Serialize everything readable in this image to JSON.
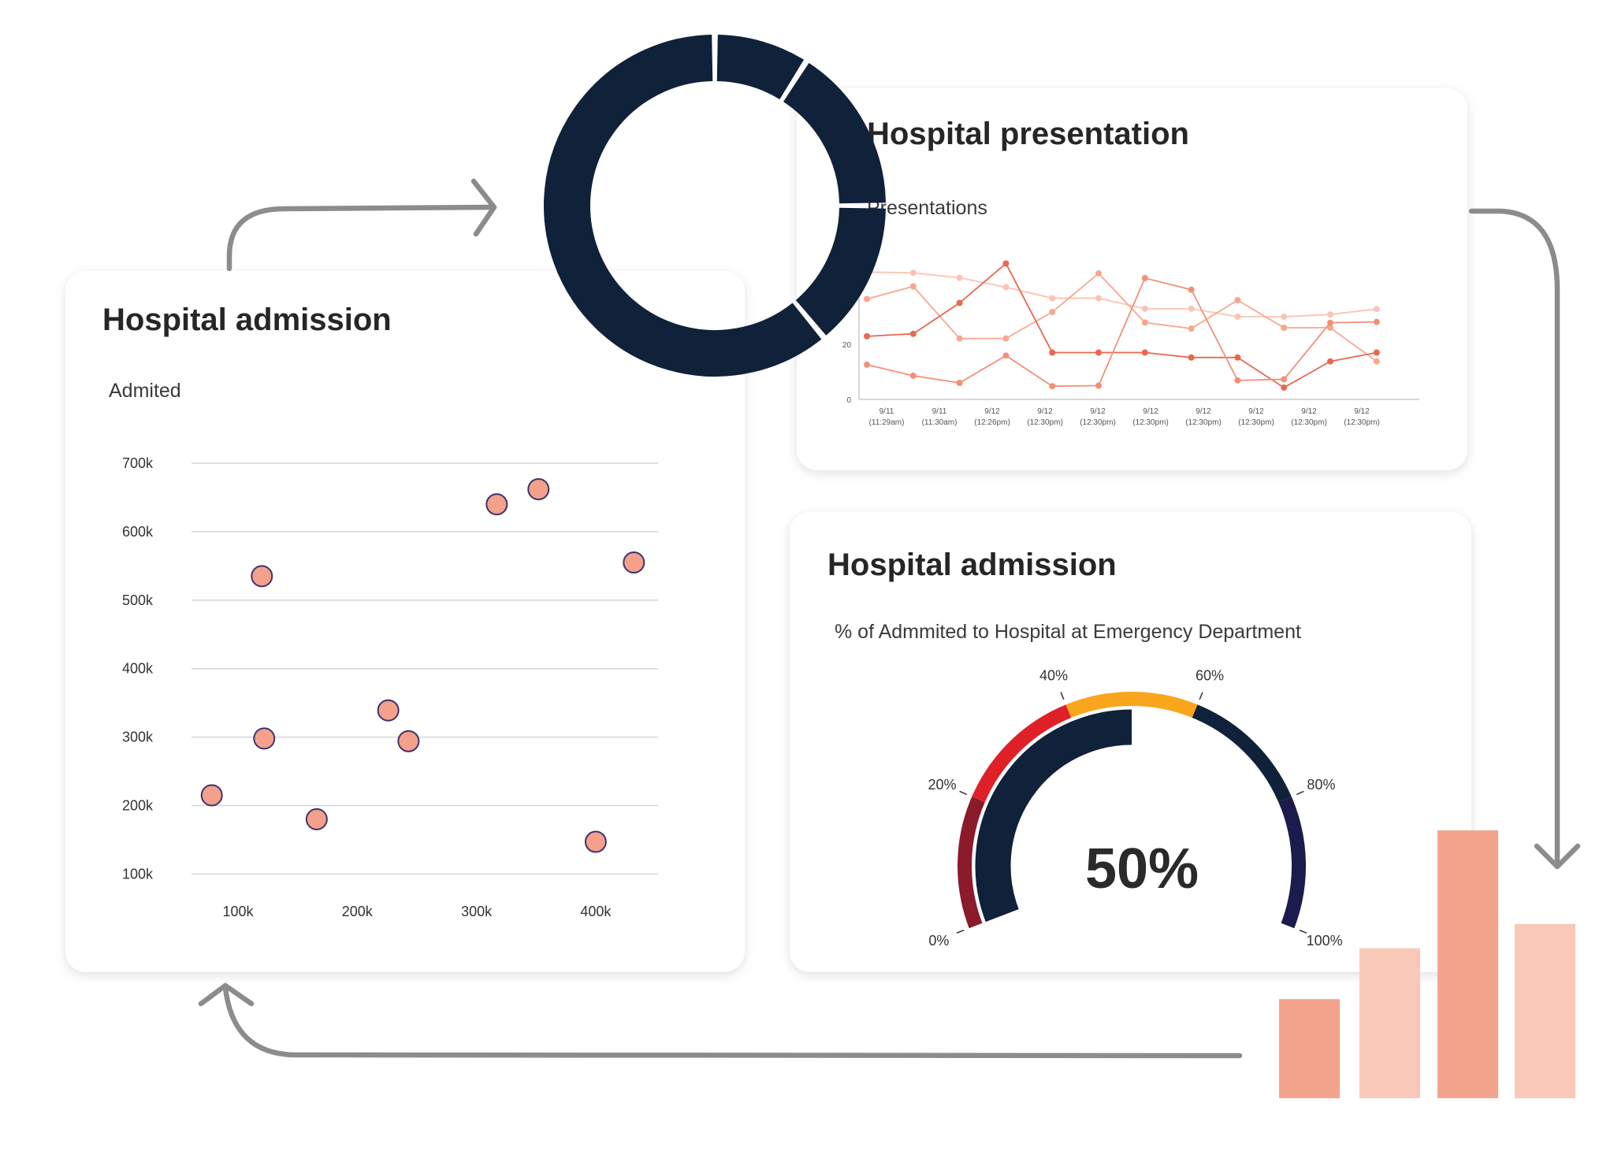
{
  "admission_card": {
    "title": "Hospital admission",
    "subtitle": "Admited"
  },
  "presentation_card": {
    "title": "Hospital presentation",
    "subtitle": "Presentations"
  },
  "gauge_card": {
    "title": "Hospital admission",
    "subtitle": "% of Admmited to Hospital at Emergency Department"
  },
  "colors": {
    "arrow": "#8c8c8c",
    "navy": "#10213a",
    "marker_fill": "#f4a08a",
    "marker_stroke": "#3b3470"
  },
  "chart_data": [
    {
      "type": "scatter",
      "xticks": [
        "100k",
        "200k",
        "300k",
        "400k"
      ],
      "yticks": [
        "100k",
        "200k",
        "300k",
        "400k",
        "500k",
        "600k",
        "700k"
      ],
      "grid": true,
      "points": [
        {
          "x": 120000,
          "y": 535000
        },
        {
          "x": 317000,
          "y": 640000
        },
        {
          "x": 352000,
          "y": 662000
        },
        {
          "x": 432000,
          "y": 555000
        },
        {
          "x": 122000,
          "y": 298000
        },
        {
          "x": 226000,
          "y": 339000
        },
        {
          "x": 243000,
          "y": 294000
        },
        {
          "x": 78000,
          "y": 215000
        },
        {
          "x": 166000,
          "y": 180000
        },
        {
          "x": 400000,
          "y": 147000
        }
      ]
    },
    {
      "type": "line",
      "yticks": [
        "0",
        "20"
      ],
      "xticks": [
        "9/11|(11:29am)",
        "9/11|(11:30am)",
        "9/12|(12:26pm)",
        "9/12|(12:30pm)",
        "9/12|(12:30pm)",
        "9/12|(12:30pm)",
        "9/12|(12:30pm)",
        "9/12|(12:30pm)",
        "9/12|(12:30pm)",
        "9/12|(12:30pm)"
      ],
      "series": [
        {
          "color": "#fbc4b2",
          "values": [
            46.2,
            45.9,
            44.1,
            40.7,
            36.7,
            36.7,
            32.9,
            32.9,
            30,
            30,
            30.8,
            32.8
          ]
        },
        {
          "color": "#f8a78e",
          "values": [
            36.4,
            41,
            22.1,
            22.1,
            31.7,
            45.7,
            27.9,
            25.7,
            36,
            26,
            26,
            13.8
          ]
        },
        {
          "color": "#e8684e",
          "values": [
            22.9,
            23.8,
            35,
            49.3,
            17,
            17,
            17,
            15.2,
            15.2,
            4.3,
            13.8,
            17
          ]
        },
        {
          "color": "#f29077",
          "values": [
            12.6,
            8.6,
            6,
            15.9,
            4.8,
            5,
            44,
            39.8,
            6.9,
            7.3,
            27.8,
            28.1
          ]
        }
      ]
    },
    {
      "type": "gauge",
      "value": 50,
      "value_label": "50%",
      "ticks": [
        "0%",
        "20%",
        "40%",
        "60%",
        "80%",
        "100%"
      ],
      "bands": [
        {
          "from": 0,
          "to": 20,
          "color": "#8b1a2b"
        },
        {
          "from": 20,
          "to": 40,
          "color": "#e02027"
        },
        {
          "from": 40,
          "to": 60,
          "color": "#f9a61c"
        },
        {
          "from": 60,
          "to": 80,
          "color": "#10213a"
        },
        {
          "from": 80,
          "to": 100,
          "color": "#1c1b4d"
        }
      ]
    },
    {
      "type": "pie",
      "values": [
        9,
        16,
        14,
        61
      ],
      "color": "#10213a"
    },
    {
      "type": "bar",
      "values": [
        37,
        56,
        100,
        65
      ],
      "colors": [
        "#f4a38c",
        "#f9c8b8",
        "#f4a38c",
        "#f9c8b8"
      ]
    }
  ]
}
